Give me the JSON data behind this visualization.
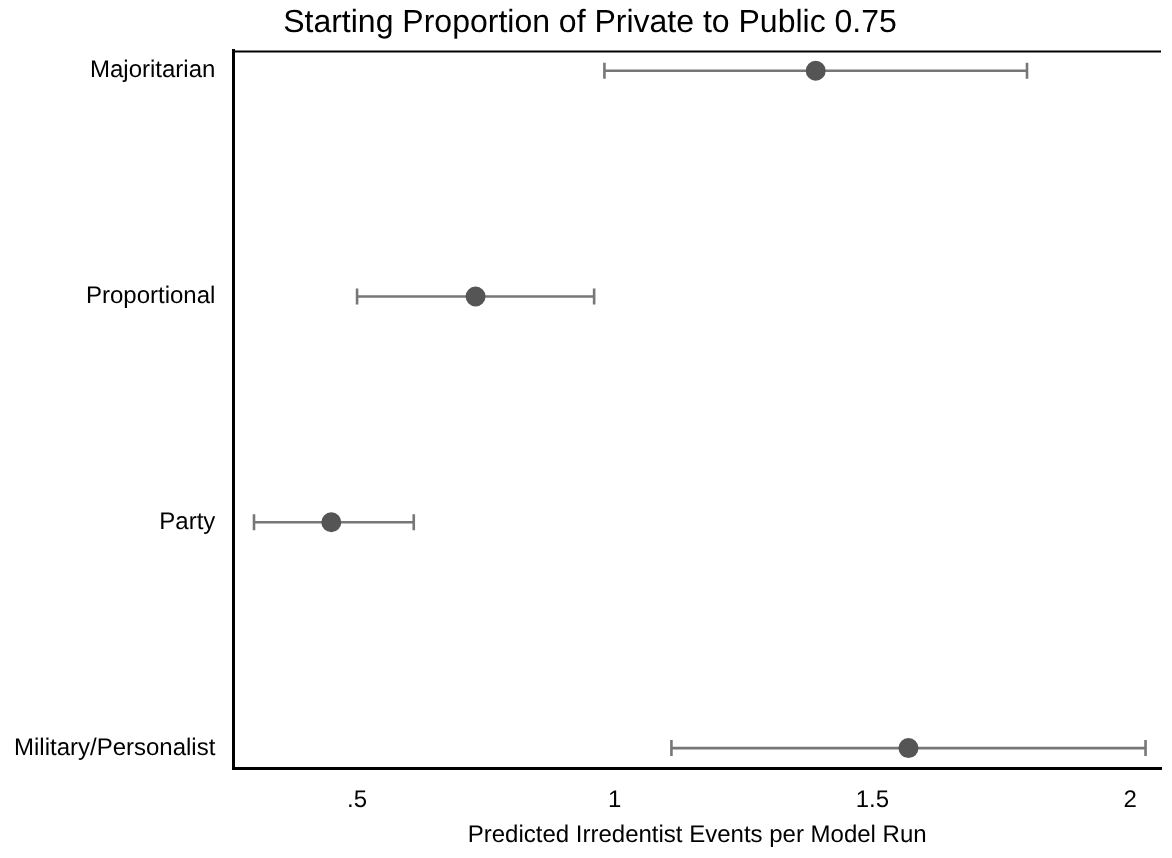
{
  "chart_data": {
    "type": "scatter",
    "orientation": "horizontal",
    "title": "Starting Proportion of Private to Public 0.75",
    "xlabel": "Predicted Irredentist Events per Model Run",
    "categories": [
      "Majoritarian",
      "Proportional",
      "Party",
      "Military/Personalist"
    ],
    "values": [
      1.39,
      0.73,
      0.45,
      1.57
    ],
    "errors": [
      [
        0.98,
        1.8
      ],
      [
        0.5,
        0.96
      ],
      [
        0.3,
        0.61
      ],
      [
        1.11,
        2.03
      ]
    ],
    "color": "#555555",
    "marker": "circle",
    "grid": false,
    "legend": false,
    "xlim": [
      0.26,
      2.06
    ],
    "xticks": [
      {
        "value": 0.5,
        "label": ".5"
      },
      1,
      1.5,
      2
    ]
  }
}
